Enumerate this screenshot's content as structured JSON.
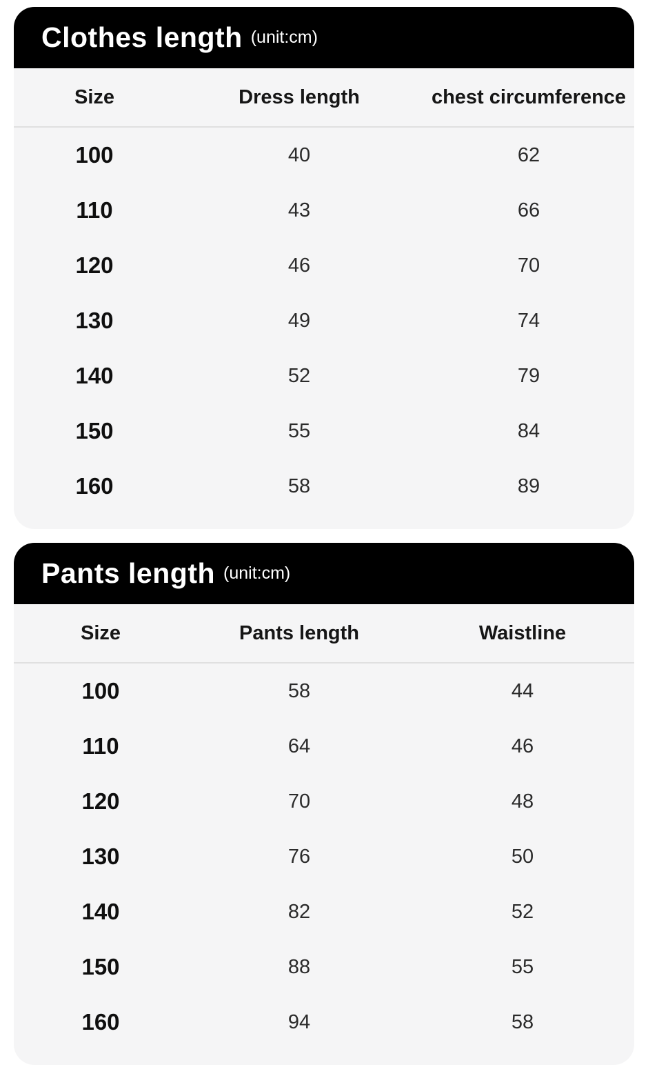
{
  "colors": {
    "header_bg": "#000000",
    "header_text": "#ffffff",
    "card_body_bg": "#f5f5f6",
    "divider": "#e0e0e0",
    "size_text": "#0f0f0f",
    "value_text": "#2b2b2b",
    "page_bg": "#ffffff"
  },
  "chart_data": [
    {
      "type": "table",
      "title": "Clothes length",
      "unit_label": "(unit:cm)",
      "columns": [
        "Size",
        "Dress length",
        "chest circumference"
      ],
      "rows": [
        [
          "100",
          "40",
          "62"
        ],
        [
          "110",
          "43",
          "66"
        ],
        [
          "120",
          "46",
          "70"
        ],
        [
          "130",
          "49",
          "74"
        ],
        [
          "140",
          "52",
          "79"
        ],
        [
          "150",
          "55",
          "84"
        ],
        [
          "160",
          "58",
          "89"
        ]
      ]
    },
    {
      "type": "table",
      "title": "Pants length",
      "unit_label": "(unit:cm)",
      "columns": [
        "Size",
        "Pants length",
        "Waistline"
      ],
      "rows": [
        [
          "100",
          "58",
          "44"
        ],
        [
          "110",
          "64",
          "46"
        ],
        [
          "120",
          "70",
          "48"
        ],
        [
          "130",
          "76",
          "50"
        ],
        [
          "140",
          "82",
          "52"
        ],
        [
          "150",
          "88",
          "55"
        ],
        [
          "160",
          "94",
          "58"
        ]
      ]
    }
  ]
}
